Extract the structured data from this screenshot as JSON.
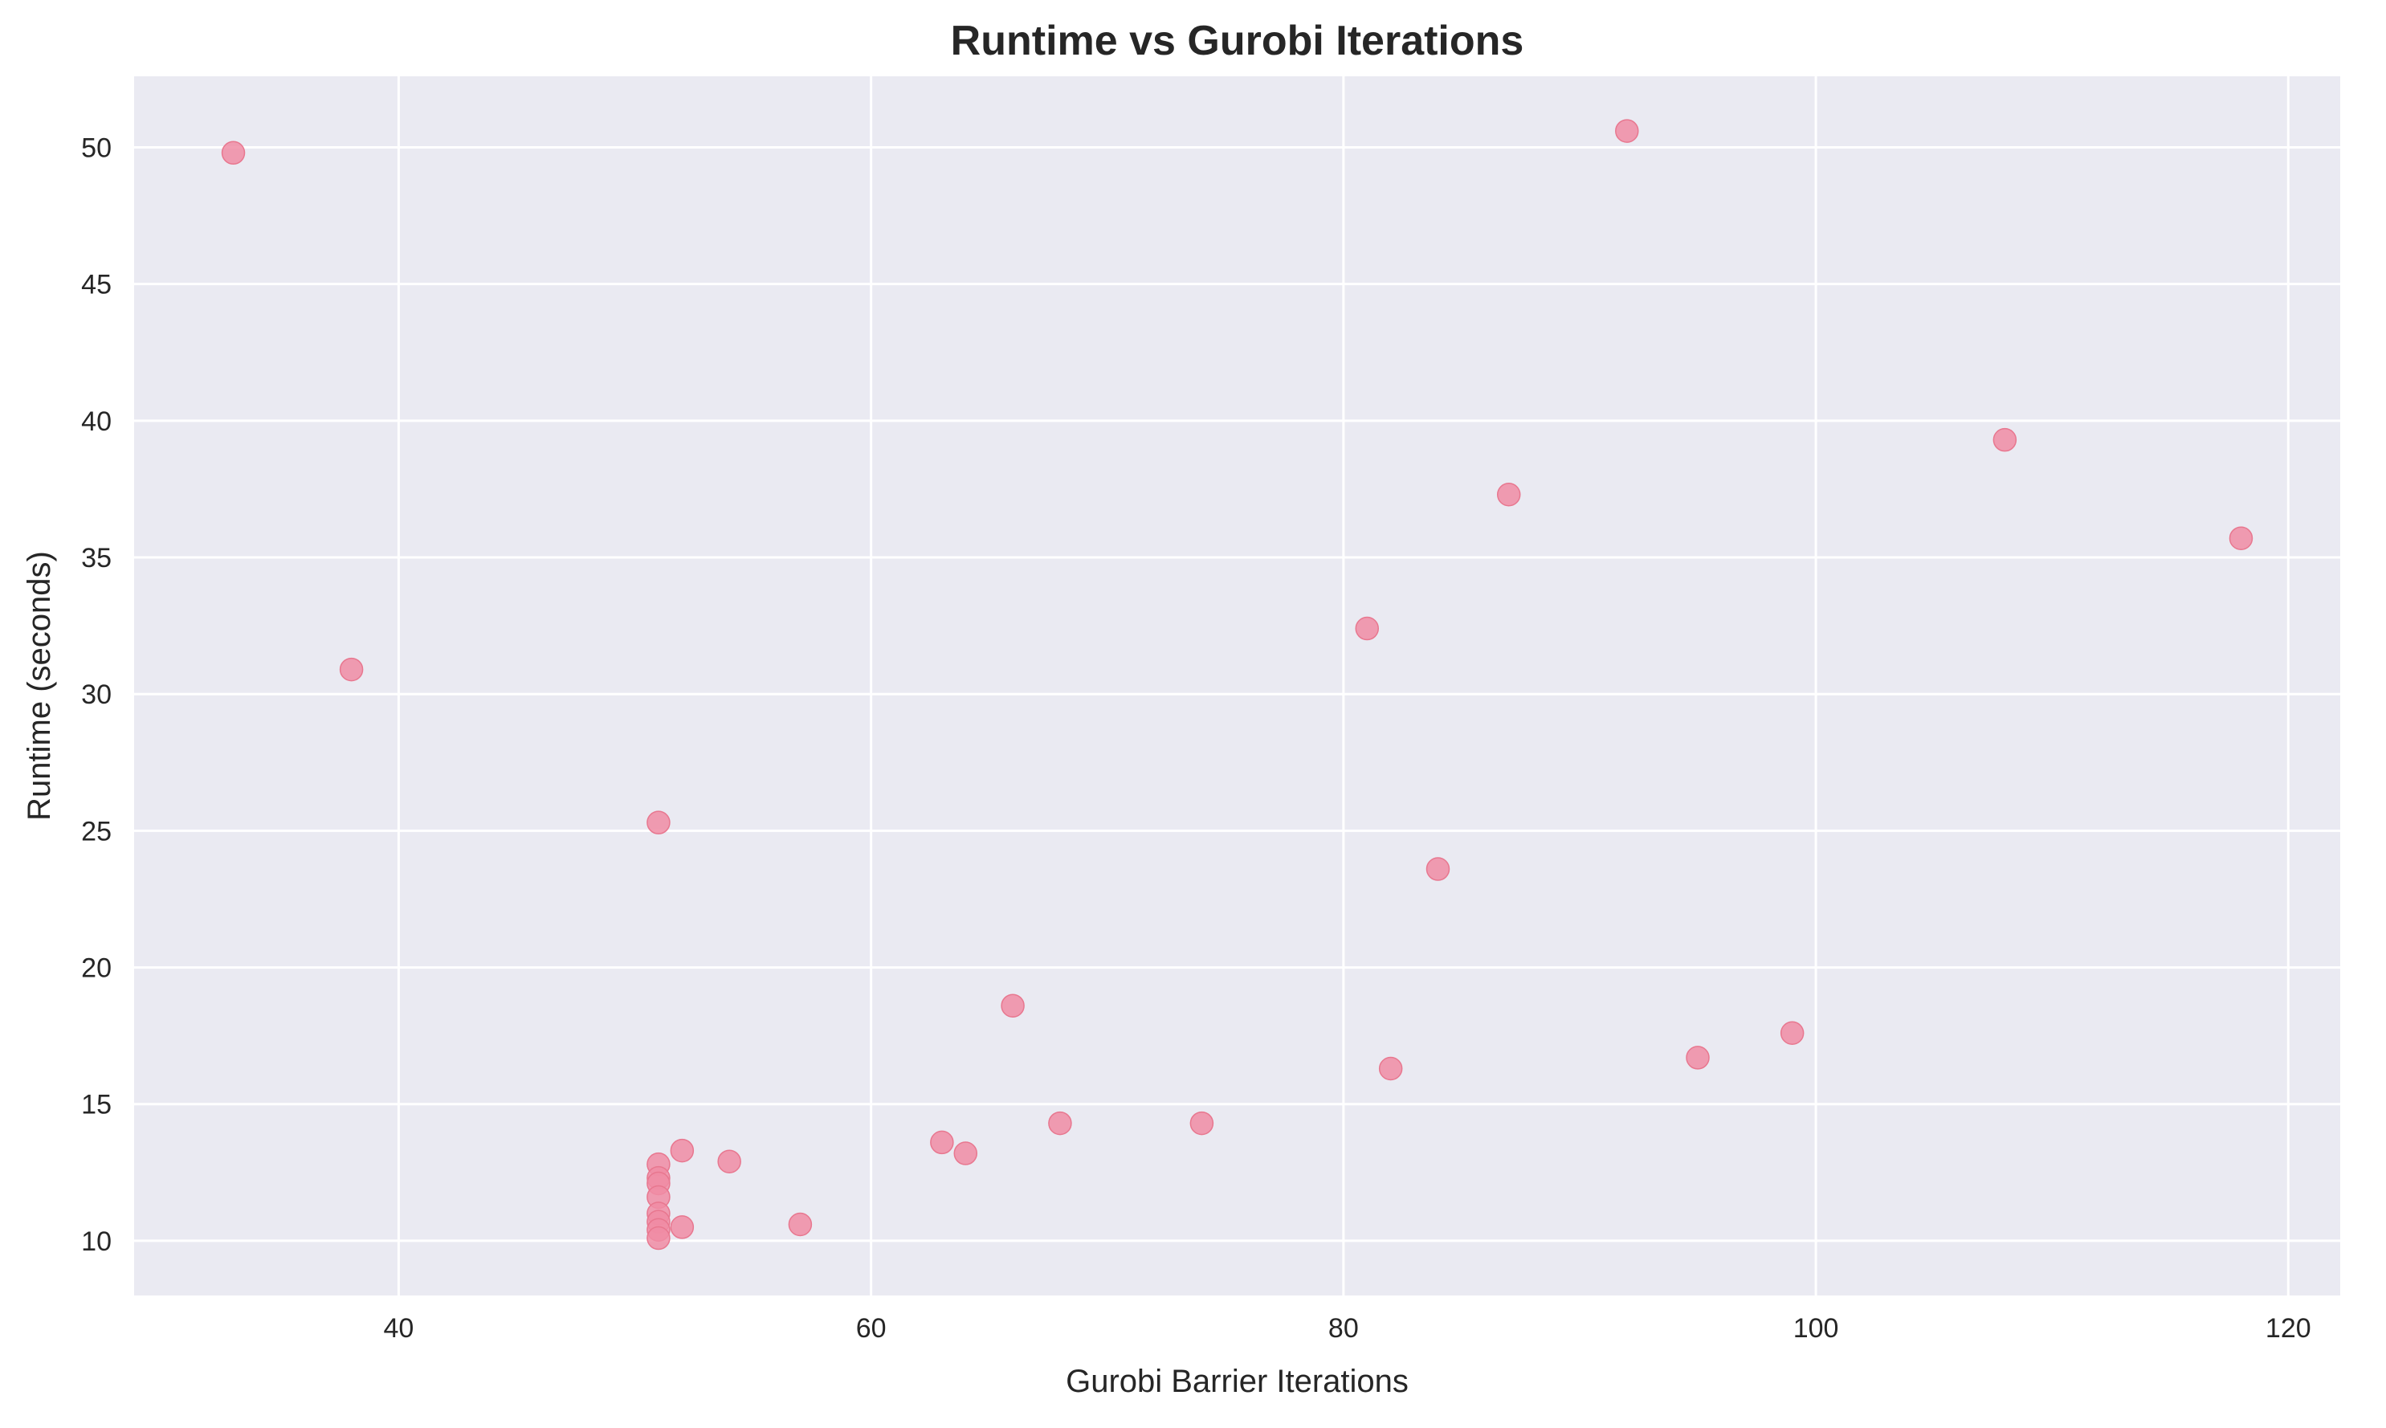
{
  "chart_data": {
    "type": "scatter",
    "title": "Runtime vs Gurobi Iterations",
    "xlabel": "Gurobi Barrier Iterations",
    "ylabel": "Runtime (seconds)",
    "xlim": [
      28.8,
      122.2
    ],
    "ylim": [
      8.0,
      52.6
    ],
    "xticks": [
      40,
      60,
      80,
      100,
      120
    ],
    "yticks": [
      10,
      15,
      20,
      25,
      30,
      35,
      40,
      45,
      50
    ],
    "grid": true,
    "legend": "none",
    "colors": {
      "background": "#EAEAF2",
      "grid": "#FFFFFF",
      "marker": "#F08CA4",
      "marker_edge": "#E8778F",
      "text": "#262626"
    },
    "points": [
      {
        "x": 33,
        "y": 49.8
      },
      {
        "x": 38,
        "y": 30.9
      },
      {
        "x": 51,
        "y": 25.3
      },
      {
        "x": 51,
        "y": 12.8
      },
      {
        "x": 51,
        "y": 12.3
      },
      {
        "x": 51,
        "y": 12.1
      },
      {
        "x": 51,
        "y": 11.6
      },
      {
        "x": 51,
        "y": 11.0
      },
      {
        "x": 51,
        "y": 10.7
      },
      {
        "x": 51,
        "y": 10.4
      },
      {
        "x": 51,
        "y": 10.1
      },
      {
        "x": 52,
        "y": 13.3
      },
      {
        "x": 52,
        "y": 10.5
      },
      {
        "x": 54,
        "y": 12.9
      },
      {
        "x": 57,
        "y": 10.6
      },
      {
        "x": 63,
        "y": 13.6
      },
      {
        "x": 64,
        "y": 13.2
      },
      {
        "x": 66,
        "y": 18.6
      },
      {
        "x": 68,
        "y": 14.3
      },
      {
        "x": 74,
        "y": 14.3
      },
      {
        "x": 81,
        "y": 32.4
      },
      {
        "x": 82,
        "y": 16.3
      },
      {
        "x": 84,
        "y": 23.6
      },
      {
        "x": 87,
        "y": 37.3
      },
      {
        "x": 92,
        "y": 50.6
      },
      {
        "x": 95,
        "y": 16.7
      },
      {
        "x": 99,
        "y": 17.6
      },
      {
        "x": 108,
        "y": 39.3
      },
      {
        "x": 118,
        "y": 35.7
      }
    ]
  }
}
